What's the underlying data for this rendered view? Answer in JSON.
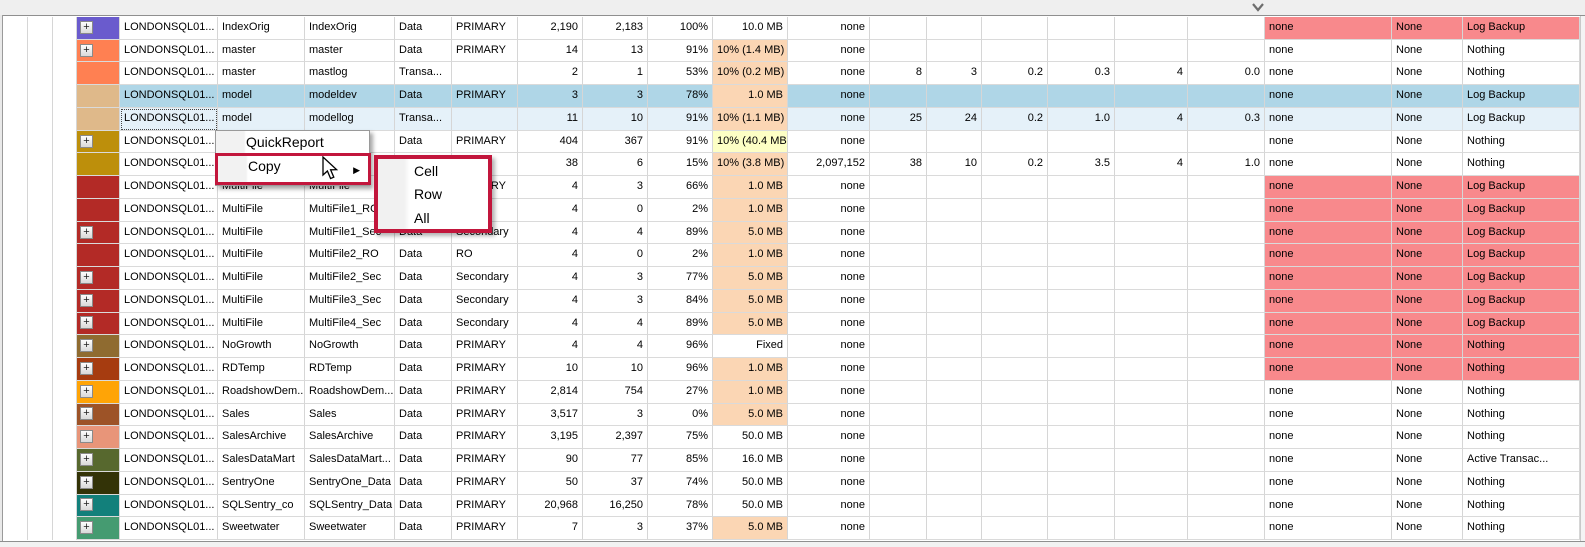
{
  "window": {
    "note": "database files data grid with context menu"
  },
  "palette": {
    "pink": "#F8898C",
    "peach": "#FBD6B4",
    "yellow": "#FDFFC5",
    "selected_blue": "#AFD6E7",
    "selected_light_blue": "#E5F1F9",
    "annotation_red": "#C2163C",
    "grid_line": "#d6d6d6"
  },
  "icons": {
    "top_chevron": "chevron-down-icon",
    "submenu_arrow": "arrow-right-icon",
    "expand_button": "plus-icon",
    "cursor": "mouse-pointer-icon"
  },
  "context_menu": {
    "items": [
      {
        "label": "QuickReport"
      },
      {
        "label": "Copy",
        "highlighted": true,
        "has_submenu": true
      }
    ]
  },
  "submenu": {
    "items": [
      {
        "label": "Cell"
      },
      {
        "label": "Row"
      },
      {
        "label": "All"
      }
    ]
  },
  "grid": {
    "rows": [
      {
        "expand": true,
        "color": "#6A5BCD",
        "server": "LONDONSQL01...",
        "db": "IndexOrig",
        "file": "IndexOrig",
        "type": "Data",
        "fg": "PRIMARY",
        "size": "2,190",
        "used": "2,183",
        "pct": "100%",
        "grow": "10.0 MB",
        "growBg": "",
        "max": "none",
        "n": [
          "",
          "",
          "",
          "",
          "",
          ""
        ],
        "m1": "none",
        "m2": "None",
        "m3": "Log Backup",
        "end": "pink"
      },
      {
        "expand": true,
        "color": "#FF8052",
        "server": "LONDONSQL01...",
        "db": "master",
        "file": "master",
        "type": "Data",
        "fg": "PRIMARY",
        "size": "14",
        "used": "13",
        "pct": "91%",
        "grow": "10% (1.4 MB)",
        "growBg": "peach",
        "max": "none",
        "n": [
          "",
          "",
          "",
          "",
          "",
          ""
        ],
        "m1": "none",
        "m2": "None",
        "m3": "Nothing",
        "end": "white"
      },
      {
        "expand": false,
        "color": "#FF8052",
        "server": "LONDONSQL01...",
        "db": "master",
        "file": "mastlog",
        "type": "Transa...",
        "fg": "",
        "size": "2",
        "used": "1",
        "pct": "53%",
        "grow": "10% (0.2 MB)",
        "growBg": "peach",
        "max": "none",
        "n": [
          "8",
          "3",
          "0.2",
          "0.3",
          "4",
          "0.0"
        ],
        "m1": "none",
        "m2": "None",
        "m3": "Nothing",
        "end": "white"
      },
      {
        "expand": false,
        "color": "#DFB98A",
        "server": "LONDONSQL01...",
        "db": "model",
        "file": "modeldev",
        "type": "Data",
        "fg": "PRIMARY",
        "size": "3",
        "used": "3",
        "pct": "78%",
        "grow": "1.0 MB",
        "growBg": "peach",
        "max": "none",
        "n": [
          "",
          "",
          "",
          "",
          "",
          ""
        ],
        "m1": "none",
        "m2": "None",
        "m3": "Log Backup",
        "end": "white",
        "sel": "blue"
      },
      {
        "expand": false,
        "color": "#DFB98A",
        "server": "LONDONSQL01...",
        "db": "model",
        "file": "modellog",
        "type": "Transa...",
        "fg": "",
        "size": "11",
        "used": "10",
        "pct": "91%",
        "grow": "10% (1.1 MB)",
        "growBg": "peach",
        "max": "none",
        "n": [
          "25",
          "24",
          "0.2",
          "1.0",
          "4",
          "0.3"
        ],
        "m1": "none",
        "m2": "None",
        "m3": "Log Backup",
        "end": "white",
        "sel": "lite",
        "focus": true
      },
      {
        "expand": true,
        "color": "#BD8F0B",
        "server": "LONDONSQL01...",
        "db": "",
        "file": "",
        "type": "Data",
        "fg": "PRIMARY",
        "size": "404",
        "used": "367",
        "pct": "91%",
        "grow": "10% (40.4 MB)",
        "growBg": "yellow",
        "max": "none",
        "n": [
          "",
          "",
          "",
          "",
          "",
          ""
        ],
        "m1": "none",
        "m2": "None",
        "m3": "Nothing",
        "end": "white"
      },
      {
        "expand": false,
        "color": "#BD8F0B",
        "server": "LONDONSQL01...",
        "db": "",
        "file": "",
        "type": "",
        "fg": "",
        "size": "38",
        "used": "6",
        "pct": "15%",
        "grow": "10% (3.8 MB)",
        "growBg": "peach",
        "max": "2,097,152",
        "n": [
          "38",
          "10",
          "0.2",
          "3.5",
          "4",
          "1.0"
        ],
        "m1": "none",
        "m2": "None",
        "m3": "Nothing",
        "end": "white"
      },
      {
        "expand": false,
        "color": "#B32A26",
        "server": "LONDONSQL01...",
        "db": "MultiFile",
        "file": "MultiFile",
        "type": "Data",
        "fg": "PRIMARY",
        "size": "4",
        "used": "3",
        "pct": "66%",
        "grow": "1.0 MB",
        "growBg": "peach",
        "max": "none",
        "n": [
          "",
          "",
          "",
          "",
          "",
          ""
        ],
        "m1": "none",
        "m2": "None",
        "m3": "Log Backup",
        "end": "pink"
      },
      {
        "expand": false,
        "color": "#B32A26",
        "server": "LONDONSQL01...",
        "db": "MultiFile",
        "file": "MultiFile1_RO",
        "type": "Data",
        "fg": "RO",
        "size": "4",
        "used": "0",
        "pct": "2%",
        "grow": "1.0 MB",
        "growBg": "peach",
        "max": "none",
        "n": [
          "",
          "",
          "",
          "",
          "",
          ""
        ],
        "m1": "none",
        "m2": "None",
        "m3": "Log Backup",
        "end": "pink"
      },
      {
        "expand": true,
        "color": "#B32A26",
        "server": "LONDONSQL01...",
        "db": "MultiFile",
        "file": "MultiFile1_Sec",
        "type": "Data",
        "fg": "Secondary",
        "size": "4",
        "used": "4",
        "pct": "89%",
        "grow": "5.0 MB",
        "growBg": "peach",
        "max": "none",
        "n": [
          "",
          "",
          "",
          "",
          "",
          ""
        ],
        "m1": "none",
        "m2": "None",
        "m3": "Log Backup",
        "end": "pink"
      },
      {
        "expand": false,
        "color": "#B32A26",
        "server": "LONDONSQL01...",
        "db": "MultiFile",
        "file": "MultiFile2_RO",
        "type": "Data",
        "fg": "RO",
        "size": "4",
        "used": "0",
        "pct": "2%",
        "grow": "1.0 MB",
        "growBg": "peach",
        "max": "none",
        "n": [
          "",
          "",
          "",
          "",
          "",
          ""
        ],
        "m1": "none",
        "m2": "None",
        "m3": "Log Backup",
        "end": "pink"
      },
      {
        "expand": true,
        "color": "#B32A26",
        "server": "LONDONSQL01...",
        "db": "MultiFile",
        "file": "MultiFile2_Sec",
        "type": "Data",
        "fg": "Secondary",
        "size": "4",
        "used": "3",
        "pct": "77%",
        "grow": "5.0 MB",
        "growBg": "peach",
        "max": "none",
        "n": [
          "",
          "",
          "",
          "",
          "",
          ""
        ],
        "m1": "none",
        "m2": "None",
        "m3": "Log Backup",
        "end": "pink"
      },
      {
        "expand": true,
        "color": "#B32A26",
        "server": "LONDONSQL01...",
        "db": "MultiFile",
        "file": "MultiFile3_Sec",
        "type": "Data",
        "fg": "Secondary",
        "size": "4",
        "used": "3",
        "pct": "84%",
        "grow": "5.0 MB",
        "growBg": "peach",
        "max": "none",
        "n": [
          "",
          "",
          "",
          "",
          "",
          ""
        ],
        "m1": "none",
        "m2": "None",
        "m3": "Log Backup",
        "end": "pink"
      },
      {
        "expand": true,
        "color": "#B32A26",
        "server": "LONDONSQL01...",
        "db": "MultiFile",
        "file": "MultiFile4_Sec",
        "type": "Data",
        "fg": "Secondary",
        "size": "4",
        "used": "4",
        "pct": "89%",
        "grow": "5.0 MB",
        "growBg": "peach",
        "max": "none",
        "n": [
          "",
          "",
          "",
          "",
          "",
          ""
        ],
        "m1": "none",
        "m2": "None",
        "m3": "Log Backup",
        "end": "pink"
      },
      {
        "expand": true,
        "color": "#8F6B30",
        "server": "LONDONSQL01...",
        "db": "NoGrowth",
        "file": "NoGrowth",
        "type": "Data",
        "fg": "PRIMARY",
        "size": "4",
        "used": "4",
        "pct": "96%",
        "grow": "Fixed",
        "growBg": "",
        "max": "none",
        "n": [
          "",
          "",
          "",
          "",
          "",
          ""
        ],
        "m1": "none",
        "m2": "None",
        "m3": "Nothing",
        "end": "pink"
      },
      {
        "expand": true,
        "color": "#A63C10",
        "server": "LONDONSQL01...",
        "db": "RDTemp",
        "file": "RDTemp",
        "type": "Data",
        "fg": "PRIMARY",
        "size": "10",
        "used": "10",
        "pct": "96%",
        "grow": "1.0 MB",
        "growBg": "peach",
        "max": "none",
        "n": [
          "",
          "",
          "",
          "",
          "",
          ""
        ],
        "m1": "none",
        "m2": "None",
        "m3": "Nothing",
        "end": "pink"
      },
      {
        "expand": true,
        "color": "#FFA406",
        "server": "LONDONSQL01...",
        "db": "RoadshowDem...",
        "file": "RoadshowDem...",
        "type": "Data",
        "fg": "PRIMARY",
        "size": "2,814",
        "used": "754",
        "pct": "27%",
        "grow": "1.0 MB",
        "growBg": "peach",
        "max": "none",
        "n": [
          "",
          "",
          "",
          "",
          "",
          ""
        ],
        "m1": "none",
        "m2": "None",
        "m3": "Nothing",
        "end": "white"
      },
      {
        "expand": true,
        "color": "#9D5327",
        "server": "LONDONSQL01...",
        "db": "Sales",
        "file": "Sales",
        "type": "Data",
        "fg": "PRIMARY",
        "size": "3,517",
        "used": "3",
        "pct": "0%",
        "grow": "5.0 MB",
        "growBg": "peach",
        "max": "none",
        "n": [
          "",
          "",
          "",
          "",
          "",
          ""
        ],
        "m1": "none",
        "m2": "None",
        "m3": "Nothing",
        "end": "white"
      },
      {
        "expand": true,
        "color": "#E89579",
        "server": "LONDONSQL01...",
        "db": "SalesArchive",
        "file": "SalesArchive",
        "type": "Data",
        "fg": "PRIMARY",
        "size": "3,195",
        "used": "2,397",
        "pct": "75%",
        "grow": "50.0 MB",
        "growBg": "",
        "max": "none",
        "n": [
          "",
          "",
          "",
          "",
          "",
          ""
        ],
        "m1": "none",
        "m2": "None",
        "m3": "Nothing",
        "end": "white"
      },
      {
        "expand": true,
        "color": "#57682E",
        "server": "LONDONSQL01...",
        "db": "SalesDataMart",
        "file": "SalesDataMart...",
        "type": "Data",
        "fg": "PRIMARY",
        "size": "90",
        "used": "77",
        "pct": "85%",
        "grow": "16.0 MB",
        "growBg": "",
        "max": "none",
        "n": [
          "",
          "",
          "",
          "",
          "",
          ""
        ],
        "m1": "none",
        "m2": "None",
        "m3": "Active Transac...",
        "end": "white"
      },
      {
        "expand": true,
        "color": "#333307",
        "server": "LONDONSQL01...",
        "db": "SentryOne",
        "file": "SentryOne_Data",
        "type": "Data",
        "fg": "PRIMARY",
        "size": "50",
        "used": "37",
        "pct": "74%",
        "grow": "50.0 MB",
        "growBg": "",
        "max": "none",
        "n": [
          "",
          "",
          "",
          "",
          "",
          ""
        ],
        "m1": "none",
        "m2": "None",
        "m3": "Nothing",
        "end": "white"
      },
      {
        "expand": true,
        "color": "#12807B",
        "server": "LONDONSQL01...",
        "db": "SQLSentry_co",
        "file": "SQLSentry_Data",
        "type": "Data",
        "fg": "PRIMARY",
        "size": "20,968",
        "used": "16,250",
        "pct": "78%",
        "grow": "50.0 MB",
        "growBg": "",
        "max": "none",
        "n": [
          "",
          "",
          "",
          "",
          "",
          ""
        ],
        "m1": "none",
        "m2": "None",
        "m3": "Nothing",
        "end": "white"
      },
      {
        "expand": true,
        "color": "#459B71",
        "server": "LONDONSQL01...",
        "db": "Sweetwater",
        "file": "Sweetwater",
        "type": "Data",
        "fg": "PRIMARY",
        "size": "7",
        "used": "3",
        "pct": "37%",
        "grow": "5.0 MB",
        "growBg": "peach",
        "max": "none",
        "n": [
          "",
          "",
          "",
          "",
          "",
          ""
        ],
        "m1": "none",
        "m2": "None",
        "m3": "Nothing",
        "end": "white"
      }
    ]
  }
}
